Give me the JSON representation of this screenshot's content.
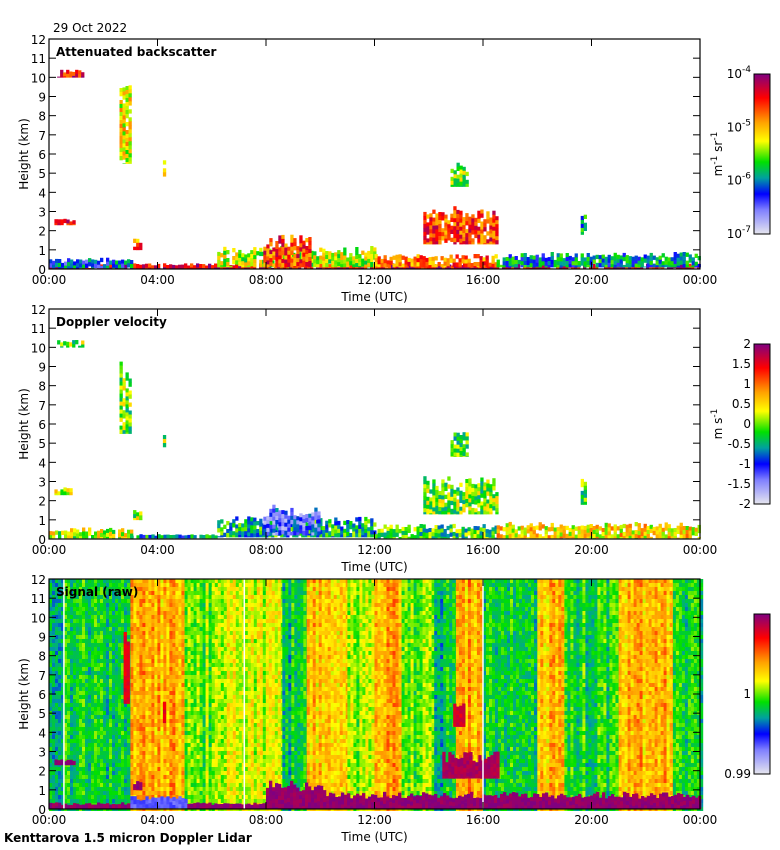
{
  "date_label": "29 Oct 2022",
  "footer": "Kenttarova 1.5 micron Doppler Lidar",
  "chart_data": [
    {
      "type": "heatmap",
      "title": "Attenuated backscatter",
      "xlabel": "Time (UTC)",
      "ylabel": "Height (km)",
      "xlim": [
        0,
        24
      ],
      "ylim": [
        0,
        12
      ],
      "xticks": [
        "00:00",
        "04:00",
        "08:00",
        "12:00",
        "16:00",
        "20:00",
        "00:00"
      ],
      "yticks": [
        "0",
        "1",
        "2",
        "3",
        "4",
        "5",
        "6",
        "7",
        "8",
        "9",
        "10",
        "11",
        "12"
      ],
      "colorbar": {
        "scale": "log",
        "range": [
          1e-07,
          0.0001
        ],
        "tick_labels": [
          {
            "base": "10",
            "exp": "-4"
          },
          {
            "base": "10",
            "exp": "-5"
          },
          {
            "base": "10",
            "exp": "-6"
          },
          {
            "base": "10",
            "exp": "-7"
          }
        ],
        "unit_label": {
          "m": "m",
          "m_exp": "-1",
          "sr": "sr",
          "sr_exp": "-1"
        }
      },
      "features": [
        {
          "desc": "near-surface layer",
          "t0": 0,
          "t1": 24,
          "h0": 0,
          "h1": 0.3,
          "level": 0.9
        },
        {
          "desc": "boundary layer 00-03",
          "t0": 0,
          "t1": 3,
          "h0": 0.05,
          "h1": 0.6,
          "level": 0.3
        },
        {
          "desc": "boundary layer 06-12",
          "t0": 6.2,
          "t1": 12,
          "h0": 0.1,
          "h1": 1.2,
          "level": 0.55
        },
        {
          "desc": "aerosol/cloud 08-09",
          "t0": 7.9,
          "t1": 9.6,
          "h0": 0.1,
          "h1": 1.8,
          "level": 0.8
        },
        {
          "desc": "boundary layer 12-16.5",
          "t0": 12,
          "t1": 16.5,
          "h0": 0.1,
          "h1": 0.8,
          "level": 0.75
        },
        {
          "desc": "boundary layer 16.5-24",
          "t0": 16.5,
          "t1": 24,
          "h0": 0.1,
          "h1": 0.9,
          "level": 0.35
        },
        {
          "desc": "cloud 00:20 2.5km",
          "t0": 0.2,
          "t1": 0.9,
          "h0": 2.3,
          "h1": 2.7,
          "level": 0.85
        },
        {
          "desc": "cloud 03:10 1.3km",
          "t0": 3.1,
          "t1": 3.4,
          "h0": 1.0,
          "h1": 1.6,
          "level": 0.75
        },
        {
          "desc": "cloud 14-16.5 rising",
          "t0": 13.8,
          "t1": 16.5,
          "h0": 1.3,
          "h1": 3.3,
          "level": 0.8
        },
        {
          "desc": "cirrus 15:00 5km",
          "t0": 14.8,
          "t1": 15.4,
          "h0": 4.3,
          "h1": 5.6,
          "level": 0.5
        },
        {
          "desc": "cirrus 02-03 high",
          "t0": 2.6,
          "t1": 3.0,
          "h0": 5.5,
          "h1": 10.2,
          "level": 0.6
        },
        {
          "desc": "cirrus 04:00 5km",
          "t0": 4.2,
          "t1": 4.3,
          "h0": 4.8,
          "h1": 5.8,
          "level": 0.55
        },
        {
          "desc": "cirrus 00:00-01:00 10km",
          "t0": 0.3,
          "t1": 1.2,
          "h0": 10.0,
          "h1": 10.4,
          "level": 0.85
        },
        {
          "desc": "cloud 19:30 2.5km",
          "t0": 19.6,
          "t1": 19.8,
          "h0": 1.8,
          "h1": 3.3,
          "level": 0.35
        }
      ]
    },
    {
      "type": "heatmap",
      "title": "Doppler velocity",
      "xlabel": "Time (UTC)",
      "ylabel": "Height (km)",
      "xlim": [
        0,
        24
      ],
      "ylim": [
        0,
        12
      ],
      "xticks": [
        "00:00",
        "04:00",
        "08:00",
        "12:00",
        "16:00",
        "20:00",
        "00:00"
      ],
      "yticks": [
        "0",
        "1",
        "2",
        "3",
        "4",
        "5",
        "6",
        "7",
        "8",
        "9",
        "10",
        "11",
        "12"
      ],
      "colorbar": {
        "scale": "linear",
        "range": [
          -2,
          2
        ],
        "tick_labels": [
          "2",
          "1.5",
          "1",
          "0.5",
          "0",
          "-0.5",
          "-1",
          "-1.5",
          "-2"
        ],
        "unit_label": {
          "m": "m",
          "s": "s",
          "s_exp": "-1"
        }
      },
      "features": [
        {
          "desc": "near-surface 00-03",
          "t0": 0,
          "t1": 3,
          "h0": 0.05,
          "h1": 0.6,
          "level": 0.55
        },
        {
          "desc": "near-surface 03-06",
          "t0": 3,
          "t1": 6.2,
          "h0": 0.05,
          "h1": 0.25,
          "level": 0.35
        },
        {
          "desc": "boundary layer 06-12",
          "t0": 6.2,
          "t1": 12,
          "h0": 0.1,
          "h1": 1.2,
          "level": 0.4
        },
        {
          "desc": "downdraft 08-10",
          "t0": 7.9,
          "t1": 10,
          "h0": 0.2,
          "h1": 1.8,
          "level": 0.2
        },
        {
          "desc": "boundary layer 12-16.5",
          "t0": 12,
          "t1": 16.5,
          "h0": 0.05,
          "h1": 0.8,
          "level": 0.45
        },
        {
          "desc": "boundary layer 16.5-24",
          "t0": 16.5,
          "t1": 24,
          "h0": 0.05,
          "h1": 0.9,
          "level": 0.62
        },
        {
          "desc": "cloud 00:20 2.5km",
          "t0": 0.2,
          "t1": 0.9,
          "h0": 2.3,
          "h1": 2.7,
          "level": 0.55
        },
        {
          "desc": "cloud 03:10 1.3km",
          "t0": 3.1,
          "t1": 3.4,
          "h0": 1.0,
          "h1": 1.6,
          "level": 0.52
        },
        {
          "desc": "cloud 14-16.5",
          "t0": 13.8,
          "t1": 16.5,
          "h0": 1.3,
          "h1": 3.3,
          "level": 0.5
        },
        {
          "desc": "cirrus 15:00 5km",
          "t0": 14.8,
          "t1": 15.4,
          "h0": 4.3,
          "h1": 5.6,
          "level": 0.45
        },
        {
          "desc": "cirrus 02-03 high",
          "t0": 2.6,
          "t1": 3.0,
          "h0": 5.5,
          "h1": 10.2,
          "level": 0.5
        },
        {
          "desc": "cirrus 04:00 5km",
          "t0": 4.2,
          "t1": 4.3,
          "h0": 4.8,
          "h1": 5.8,
          "level": 0.5
        },
        {
          "desc": "cirrus 00:00-01:00 10km",
          "t0": 0.3,
          "t1": 1.2,
          "h0": 10.0,
          "h1": 10.4,
          "level": 0.5
        },
        {
          "desc": "cloud 19:30 2.5km",
          "t0": 19.6,
          "t1": 19.8,
          "h0": 1.8,
          "h1": 3.3,
          "level": 0.45
        }
      ]
    },
    {
      "type": "heatmap",
      "title": "Signal (raw)",
      "xlabel": "Time (UTC)",
      "ylabel": "Height (km)",
      "xlim": [
        0,
        24
      ],
      "ylim": [
        0,
        12
      ],
      "xticks": [
        "00:00",
        "04:00",
        "08:00",
        "12:00",
        "16:00",
        "20:00",
        "00:00"
      ],
      "yticks": [
        "0",
        "1",
        "2",
        "3",
        "4",
        "5",
        "6",
        "7",
        "8",
        "9",
        "10",
        "11",
        "12"
      ],
      "colorbar": {
        "scale": "linear",
        "range": [
          0.99,
          1.01
        ],
        "tick_labels": [
          "1",
          "0.99"
        ]
      },
      "background_bands": [
        {
          "t0": 0,
          "t1": 3.0,
          "level": 0.42
        },
        {
          "t0": 3.0,
          "t1": 5.0,
          "level": 0.68
        },
        {
          "t0": 5.0,
          "t1": 6.0,
          "level": 0.5
        },
        {
          "t0": 6.0,
          "t1": 8.6,
          "level": 0.56
        },
        {
          "t0": 8.6,
          "t1": 9.5,
          "level": 0.42
        },
        {
          "t0": 9.5,
          "t1": 11.0,
          "level": 0.66
        },
        {
          "t0": 11.0,
          "t1": 12.0,
          "level": 0.52
        },
        {
          "t0": 12.0,
          "t1": 13.0,
          "level": 0.68
        },
        {
          "t0": 13.0,
          "t1": 14.2,
          "level": 0.5
        },
        {
          "t0": 14.2,
          "t1": 15.0,
          "level": 0.4
        },
        {
          "t0": 15.0,
          "t1": 16.0,
          "level": 0.68
        },
        {
          "t0": 16.0,
          "t1": 18.0,
          "level": 0.42
        },
        {
          "t0": 18.0,
          "t1": 19.0,
          "level": 0.66
        },
        {
          "t0": 19.0,
          "t1": 21.0,
          "level": 0.45
        },
        {
          "t0": 21.0,
          "t1": 23.0,
          "level": 0.67
        },
        {
          "t0": 23.0,
          "t1": 24,
          "level": 0.42
        }
      ],
      "features": [
        {
          "desc": "surface saturation 00-03",
          "t0": 0,
          "t1": 3,
          "h0": 0,
          "h1": 0.35,
          "level": 0.98
        },
        {
          "desc": "surface 03-06",
          "t0": 3,
          "t1": 5.1,
          "h0": 0.05,
          "h1": 0.7,
          "level": 0.18
        },
        {
          "desc": "surface 06-08",
          "t0": 5.1,
          "t1": 8.0,
          "h0": 0,
          "h1": 0.35,
          "level": 0.98
        },
        {
          "desc": "surface saturation 08-24",
          "t0": 8.0,
          "t1": 24,
          "h0": 0,
          "h1": 0.9,
          "level": 0.98
        },
        {
          "desc": "saturation bump 08-10",
          "t0": 8.0,
          "t1": 10.2,
          "h0": 0,
          "h1": 1.5,
          "level": 0.98
        },
        {
          "desc": "cloud 00:20 2.5km",
          "t0": 0.2,
          "t1": 0.9,
          "h0": 2.3,
          "h1": 2.6,
          "level": 0.98
        },
        {
          "desc": "cloud 03:10 1.3km",
          "t0": 3.1,
          "t1": 3.4,
          "h0": 1.0,
          "h1": 1.5,
          "level": 0.98
        },
        {
          "desc": "cloud 14-16.5",
          "t0": 14.5,
          "t1": 16.5,
          "h0": 1.6,
          "h1": 3.0,
          "level": 0.95
        },
        {
          "desc": "cirrus streak 02:50",
          "t0": 2.75,
          "t1": 2.95,
          "h0": 5.5,
          "h1": 9.5,
          "level": 0.88
        },
        {
          "desc": "cirrus streak 04:15",
          "t0": 4.2,
          "t1": 4.3,
          "h0": 4.5,
          "h1": 6.0,
          "level": 0.88
        },
        {
          "desc": "cirrus 15:00 5km",
          "t0": 14.9,
          "t1": 15.3,
          "h0": 4.3,
          "h1": 5.8,
          "level": 0.9
        }
      ],
      "white_gaps": [
        0.55,
        7.2,
        16.0
      ]
    }
  ]
}
